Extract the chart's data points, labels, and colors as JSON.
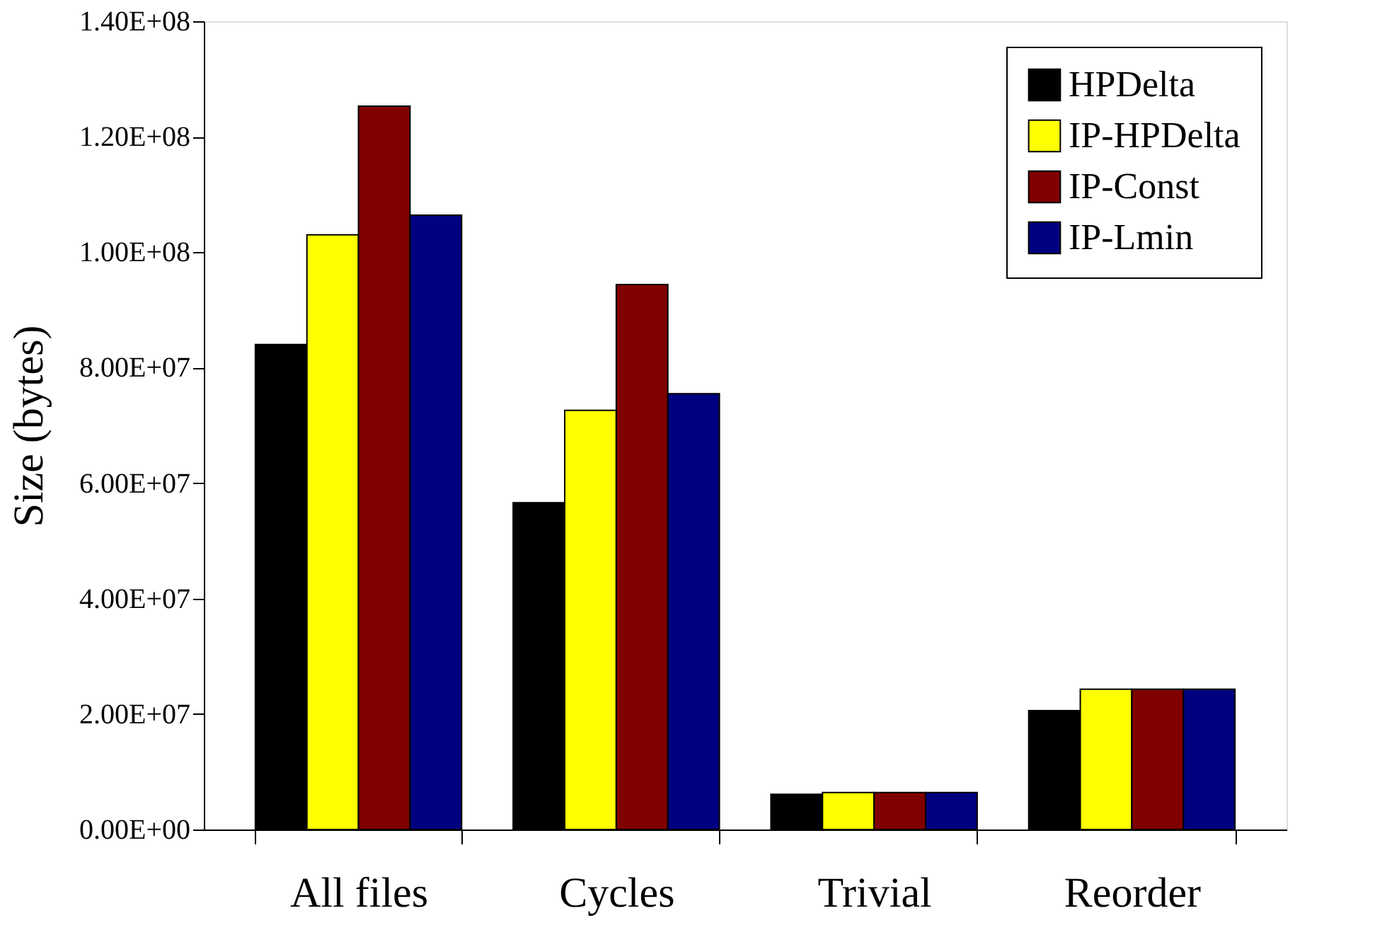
{
  "chart_data": {
    "type": "bar",
    "ylabel": "Size (bytes)",
    "categories": [
      "All files",
      "Cycles",
      "Trivial",
      "Reorder"
    ],
    "series": [
      {
        "name": "HPDelta",
        "color": "#000000",
        "values": [
          84000000,
          56600000,
          6100000,
          20600000
        ]
      },
      {
        "name": "IP-HPDelta",
        "color": "#ffff00",
        "values": [
          103000000,
          72600000,
          6400000,
          24300000
        ]
      },
      {
        "name": "IP-Const",
        "color": "#800000",
        "values": [
          125300000,
          94400000,
          6400000,
          24300000
        ]
      },
      {
        "name": "IP-Lmin",
        "color": "#000080",
        "values": [
          106400000,
          75500000,
          6400000,
          24300000
        ]
      }
    ],
    "ylim": [
      0,
      140000000
    ],
    "yticks": [
      {
        "value": 0,
        "label": "0.00E+00"
      },
      {
        "value": 20000000,
        "label": "2.00E+07"
      },
      {
        "value": 40000000,
        "label": "4.00E+07"
      },
      {
        "value": 60000000,
        "label": "6.00E+07"
      },
      {
        "value": 80000000,
        "label": "8.00E+07"
      },
      {
        "value": 100000000,
        "label": "1.00E+08"
      },
      {
        "value": 120000000,
        "label": "1.20E+08"
      },
      {
        "value": 140000000,
        "label": "1.40E+08"
      }
    ],
    "grid": false,
    "legend": "top right"
  }
}
